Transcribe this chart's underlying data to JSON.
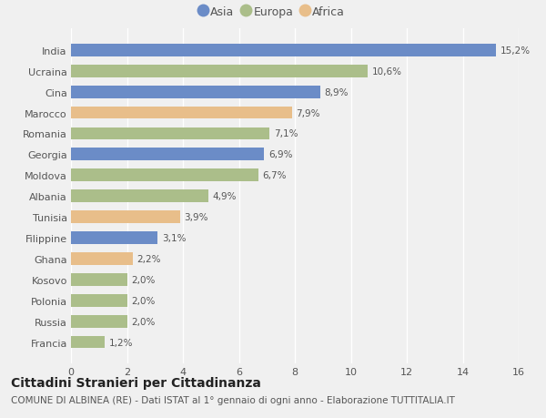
{
  "countries": [
    "Francia",
    "Russia",
    "Polonia",
    "Kosovo",
    "Ghana",
    "Filippine",
    "Tunisia",
    "Albania",
    "Moldova",
    "Georgia",
    "Romania",
    "Marocco",
    "Cina",
    "Ucraina",
    "India"
  ],
  "values": [
    1.2,
    2.0,
    2.0,
    2.0,
    2.2,
    3.1,
    3.9,
    4.9,
    6.7,
    6.9,
    7.1,
    7.9,
    8.9,
    10.6,
    15.2
  ],
  "labels": [
    "1,2%",
    "2,0%",
    "2,0%",
    "2,0%",
    "2,2%",
    "3,1%",
    "3,9%",
    "4,9%",
    "6,7%",
    "6,9%",
    "7,1%",
    "7,9%",
    "8,9%",
    "10,6%",
    "15,2%"
  ],
  "continents": [
    "Europa",
    "Europa",
    "Europa",
    "Europa",
    "Africa",
    "Asia",
    "Africa",
    "Europa",
    "Europa",
    "Asia",
    "Europa",
    "Africa",
    "Asia",
    "Europa",
    "Asia"
  ],
  "colors": {
    "Asia": "#6b8cc7",
    "Europa": "#abbe8a",
    "Africa": "#e8be8a"
  },
  "legend_labels": [
    "Asia",
    "Europa",
    "Africa"
  ],
  "legend_colors": [
    "#6b8cc7",
    "#abbe8a",
    "#e8be8a"
  ],
  "title": "Cittadini Stranieri per Cittadinanza",
  "subtitle": "COMUNE DI ALBINEA (RE) - Dati ISTAT al 1° gennaio di ogni anno - Elaborazione TUTTITALIA.IT",
  "xlim": [
    0,
    16
  ],
  "xticks": [
    0,
    2,
    4,
    6,
    8,
    10,
    12,
    14,
    16
  ],
  "background_color": "#f0f0f0",
  "bar_height": 0.6,
  "grid_color": "#ffffff",
  "title_fontsize": 10,
  "subtitle_fontsize": 7.5,
  "label_fontsize": 7.5,
  "tick_fontsize": 8,
  "legend_fontsize": 9
}
